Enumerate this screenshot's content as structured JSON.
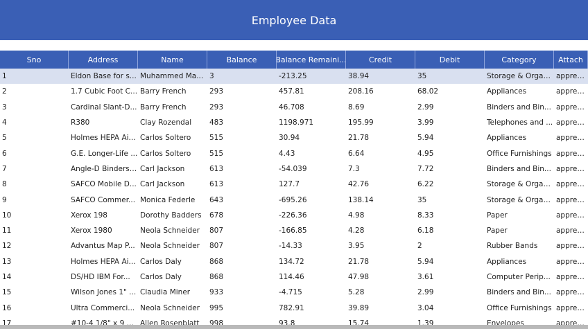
{
  "header": {
    "title": "Employee Data"
  },
  "table": {
    "columns": [
      "Sno",
      "Address",
      "Name",
      "Balance",
      "Balance Remaini...",
      "Credit",
      "Debit",
      "Category",
      "Attach"
    ],
    "rows": [
      [
        "1",
        "Eldon Base for s...",
        "Muhammed Ma...",
        "3",
        "-213.25",
        "38.94",
        "35",
        "Storage & Organ...",
        "appres://"
      ],
      [
        "2",
        "1.7 Cubic Foot C...",
        "Barry French",
        "293",
        "457.81",
        "208.16",
        "68.02",
        "Appliances",
        "appres://"
      ],
      [
        "3",
        "Cardinal Slant-D...",
        "Barry French",
        "293",
        "46.708",
        "8.69",
        "2.99",
        "Binders and Bin...",
        "appres://"
      ],
      [
        "4",
        "R380",
        "Clay Rozendal",
        "483",
        "1198.971",
        "195.99",
        "3.99",
        "Telephones and ...",
        "appres://"
      ],
      [
        "5",
        "Holmes HEPA Ai...",
        "Carlos Soltero",
        "515",
        "30.94",
        "21.78",
        "5.94",
        "Appliances",
        "appres://"
      ],
      [
        "6",
        "G.E. Longer-Life ...",
        "Carlos Soltero",
        "515",
        "4.43",
        "6.64",
        "4.95",
        "Office Furnishings",
        "appres://"
      ],
      [
        "7",
        "Angle-D Binders ...",
        "Carl Jackson",
        "613",
        "-54.039",
        "7.3",
        "7.72",
        "Binders and Bin...",
        "appres://"
      ],
      [
        "8",
        "SAFCO Mobile D...",
        "Carl Jackson",
        "613",
        "127.7",
        "42.76",
        "6.22",
        "Storage & Organ...",
        "appres://"
      ],
      [
        "9",
        "SAFCO Commer...",
        "Monica Federle",
        "643",
        "-695.26",
        "138.14",
        "35",
        "Storage & Organ...",
        "appres://"
      ],
      [
        "10",
        "Xerox 198",
        "Dorothy Badders",
        "678",
        "-226.36",
        "4.98",
        "8.33",
        "Paper",
        "appres://"
      ],
      [
        "11",
        "Xerox 1980",
        "Neola Schneider",
        "807",
        "-166.85",
        "4.28",
        "6.18",
        "Paper",
        "appres://"
      ],
      [
        "12",
        "Advantus Map P...",
        "Neola Schneider",
        "807",
        "-14.33",
        "3.95",
        "2",
        "Rubber Bands",
        "appres://"
      ],
      [
        "13",
        "Holmes HEPA Ai...",
        "Carlos Daly",
        "868",
        "134.72",
        "21.78",
        "5.94",
        "Appliances",
        "appres://"
      ],
      [
        "14",
        "DS/HD IBM For...",
        "Carlos Daly",
        "868",
        "114.46",
        "47.98",
        "3.61",
        "Computer Perip...",
        "appres://"
      ],
      [
        "15",
        "Wilson Jones 1\" ...",
        "Claudia Miner",
        "933",
        "-4.715",
        "5.28",
        "2.99",
        "Binders and Bin...",
        "appres://"
      ],
      [
        "16",
        "Ultra Commerci...",
        "Neola Schneider",
        "995",
        "782.91",
        "39.89",
        "3.04",
        "Office Furnishings",
        "appres://"
      ],
      [
        "17",
        "#10-4 1/8\" x 9 1/...",
        "Allen Rosenblatt",
        "998",
        "93.8",
        "15.74",
        "1.39",
        "Envelopes",
        "appres://"
      ]
    ]
  },
  "colors": {
    "header_bg": "#3a5fb5",
    "selected_row": "#d9e0f0"
  }
}
